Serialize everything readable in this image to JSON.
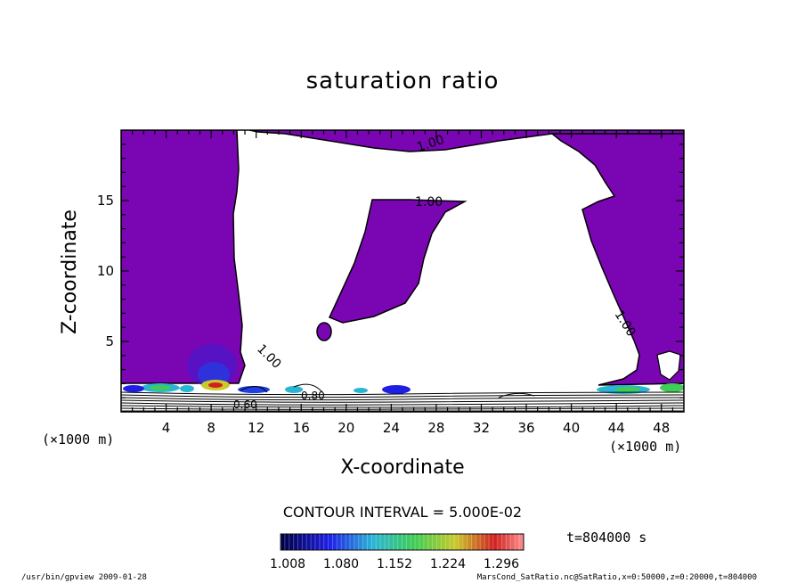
{
  "chart_data": {
    "type": "contour",
    "title": "saturation ratio",
    "xlabel": "X-coordinate",
    "ylabel": "Z-coordinate",
    "x_unit": "(×1000 m)",
    "y_unit": "(×1000 m)",
    "xlim": [
      0,
      50
    ],
    "ylim": [
      0,
      20
    ],
    "xticks": [
      4,
      8,
      12,
      16,
      20,
      24,
      28,
      32,
      36,
      40,
      44,
      48
    ],
    "yticks": [
      5,
      10,
      15
    ],
    "contour_interval_text": "CONTOUR INTERVAL = 5.000E-02",
    "contour_labels": [
      "1.00",
      "1.00",
      "1.00",
      "1.00",
      "0.60",
      "0.80"
    ],
    "colorbar": {
      "ticks": [
        "1.008",
        "1.080",
        "1.152",
        "1.224",
        "1.296"
      ],
      "colors": [
        "#000040",
        "#1e1ee6",
        "#2bb5d5",
        "#3ecd55",
        "#c9c92a",
        "#d02020",
        "#ff9090"
      ]
    },
    "time_label": "t=804000 s",
    "fill_color": "#7a05b3",
    "grid": false
  },
  "footer": {
    "left": "/usr/bin/gpview  2009-01-28",
    "right": "MarsCond_SatRatio.nc@SatRatio,x=0:50000,z=0:20000,t=804000"
  }
}
